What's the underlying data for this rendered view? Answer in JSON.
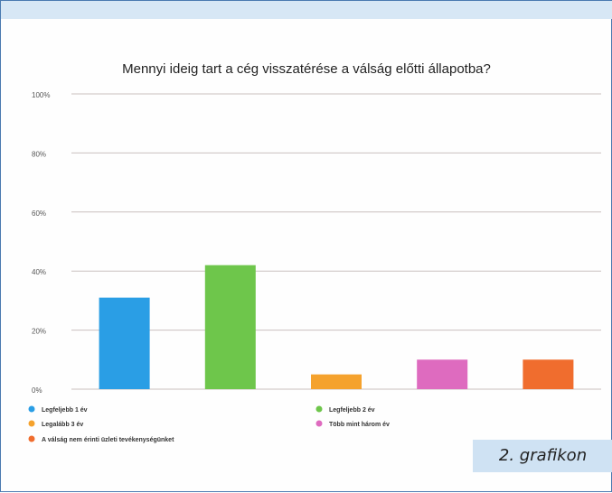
{
  "chart_data": {
    "type": "bar",
    "title": "Mennyi ideig tart a cég visszatérése a válság előtti állapotba?",
    "xlabel": "",
    "ylabel": "",
    "ylim": [
      0,
      100
    ],
    "yticks": [
      "0%",
      "20%",
      "40%",
      "60%",
      "80%",
      "100%"
    ],
    "grid": true,
    "legend_position": "bottom",
    "categories": [
      "Legfeljebb 1 év",
      "Legfeljebb 2 év",
      "Legalább 3 év",
      "Több mint három év",
      "A válság nem érinti üzleti tevékenységünket"
    ],
    "values": [
      31,
      42,
      5,
      10,
      10
    ],
    "colors": [
      "#2a9ee5",
      "#6ec64b",
      "#f5a22d",
      "#de6bbf",
      "#f06d2e"
    ]
  },
  "caption": "2. grafikon"
}
